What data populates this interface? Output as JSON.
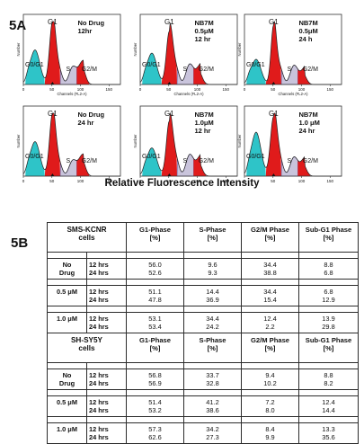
{
  "figure": {
    "label_a": "5A",
    "label_b": "5B",
    "x_axis_title": "Relative Fluorescence Intensity",
    "small_axis_y": "Number",
    "small_axis_x": "Channels (FL2-A)",
    "ticks_x": [
      "0",
      "50",
      "100",
      "150"
    ]
  },
  "panels": [
    {
      "title": [
        "No Drug",
        "12hr"
      ],
      "g1": "G1",
      "g0": "G0/G1",
      "s": "S",
      "g2m": "G2/M"
    },
    {
      "title": [
        "NB7M",
        "0.5μM",
        "12 hr"
      ],
      "g1": "G1",
      "g0": "G0/G1",
      "s": "S",
      "g2m": "G2/M"
    },
    {
      "title": [
        "NB7M",
        "0.5μM",
        "24 h"
      ],
      "g1": "G1",
      "g0": "G0/G1",
      "s": "S",
      "g2m": "G2/M"
    },
    {
      "title": [
        "No Drug",
        "24 hr"
      ],
      "g1": "G1",
      "g0": "G0/G1",
      "s": "S",
      "g2m": "G2/M"
    },
    {
      "title": [
        "NB7M",
        "1.0μM",
        "12 hr"
      ],
      "g1": "G1",
      "g0": "G0/G1",
      "s": "S",
      "g2m": "G2/M"
    },
    {
      "title": [
        "NB7M",
        "1.0 μM",
        "24 hr"
      ],
      "g1": "G1",
      "g0": "G0/G1",
      "s": "S",
      "g2m": "G2/M"
    }
  ],
  "table": {
    "header": {
      "g1": [
        "G1-Phase",
        "[%]"
      ],
      "s": [
        "S-Phase",
        "[%]"
      ],
      "g2m": [
        "G2/M Phase",
        "[%]"
      ],
      "subg1": [
        "Sub-G1 Phase",
        "[%]"
      ]
    },
    "sections": [
      {
        "cell_line": [
          "SMS-KCNR",
          "cells"
        ],
        "groups": [
          {
            "cond": [
              "No",
              "Drug"
            ],
            "times": [
              "12 hrs",
              "24 hrs"
            ],
            "g1": [
              "56.0",
              "52.6"
            ],
            "s": [
              "9.6",
              "9.3"
            ],
            "g2m": [
              "34.4",
              "38.8"
            ],
            "subg1": [
              "8.8",
              "6.8"
            ]
          },
          {
            "cond": [
              "0.5 μM"
            ],
            "times": [
              "12 hrs",
              "24 hrs"
            ],
            "g1": [
              "51.1",
              "47.8"
            ],
            "s": [
              "14.4",
              "36.9"
            ],
            "g2m": [
              "34.4",
              "15.4"
            ],
            "subg1": [
              "6.8",
              "12.9"
            ]
          },
          {
            "cond": [
              "1.0 μM"
            ],
            "times": [
              "12 hrs",
              "24 hrs"
            ],
            "g1": [
              "53.1",
              "53.4"
            ],
            "s": [
              "34.4",
              "24.2"
            ],
            "g2m": [
              "12.4",
              "2.2"
            ],
            "subg1": [
              "13.9",
              "29.8"
            ]
          }
        ]
      },
      {
        "cell_line": [
          "SH-SY5Y",
          "cells"
        ],
        "groups": [
          {
            "cond": [
              "No",
              "Drug"
            ],
            "times": [
              "12 hrs",
              "24 hrs"
            ],
            "g1": [
              "56.8",
              "56.9"
            ],
            "s": [
              "33.7",
              "32.8"
            ],
            "g2m": [
              "9.4",
              "10.2"
            ],
            "subg1": [
              "8.8",
              "8.2"
            ]
          },
          {
            "cond": [
              "0.5 μM"
            ],
            "times": [
              "12 hrs",
              "24 hrs"
            ],
            "g1": [
              "51.4",
              "53.2"
            ],
            "s": [
              "41.2",
              "38.6"
            ],
            "g2m": [
              "7.2",
              "8.0"
            ],
            "subg1": [
              "12.4",
              "14.4"
            ]
          },
          {
            "cond": [
              "1.0 μM"
            ],
            "times": [
              "12 hrs",
              "24 hrs"
            ],
            "g1": [
              "57.3",
              "62.6"
            ],
            "s": [
              "34.2",
              "27.3"
            ],
            "g2m": [
              "8.4",
              "9.9"
            ],
            "subg1": [
              "13.3",
              "35.6"
            ]
          }
        ]
      }
    ]
  }
}
